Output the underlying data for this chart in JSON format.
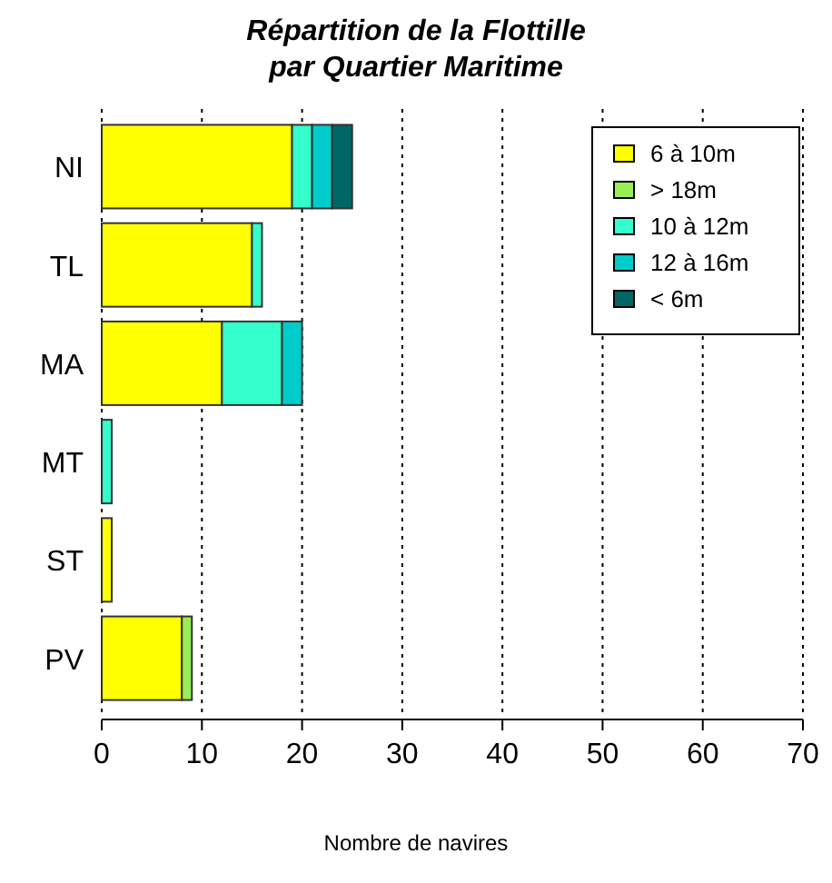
{
  "chart_data": {
    "type": "bar",
    "orientation": "horizontal",
    "stacked": true,
    "title": "Répartition de la Flottille\npar Quartier Maritime",
    "xlabel": "Nombre de navires",
    "categories": [
      "NI",
      "TL",
      "MA",
      "MT",
      "ST",
      "PV"
    ],
    "series": [
      {
        "name": "6 à 10m",
        "color": "#ffff00",
        "values": [
          19,
          15,
          12,
          0,
          1,
          8
        ]
      },
      {
        "name": "> 18m",
        "color": "#99ee55",
        "values": [
          0,
          0,
          0,
          0,
          0,
          1
        ]
      },
      {
        "name": "10 à 12m",
        "color": "#33ffcc",
        "values": [
          2,
          1,
          6,
          1,
          0,
          0
        ]
      },
      {
        "name": "12 à 16m",
        "color": "#00cccc",
        "values": [
          2,
          0,
          2,
          0,
          0,
          0
        ]
      },
      {
        "name": "< 6m",
        "color": "#006666",
        "values": [
          2,
          0,
          0,
          0,
          0,
          0
        ]
      }
    ],
    "xlim": [
      0,
      70
    ],
    "xticks": [
      0,
      10,
      20,
      30,
      40,
      50,
      60,
      70
    ],
    "grid": "x",
    "legend": "top right"
  }
}
